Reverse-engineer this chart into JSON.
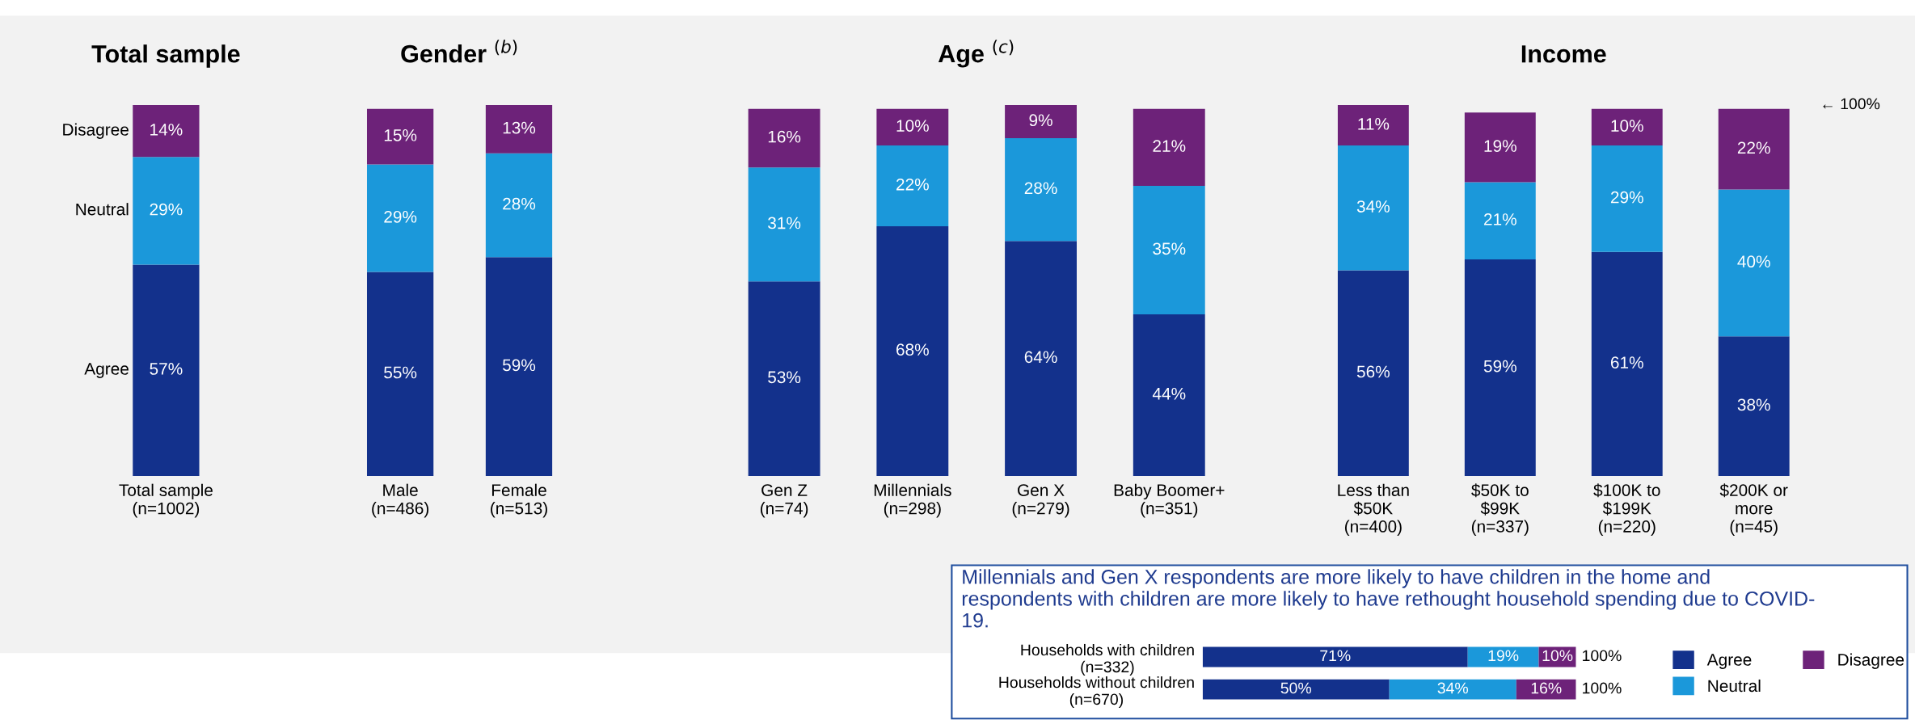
{
  "chart_data": [
    {
      "type": "bar",
      "stacked": true,
      "title": "Total sample",
      "categories": [
        "Total sample\n(n=1002)"
      ],
      "series": [
        {
          "name": "Agree",
          "color": "#13318c",
          "values": [
            57
          ],
          "value_labels": [
            "57%"
          ]
        },
        {
          "name": "Neutral",
          "color": "#1b98da",
          "values": [
            29
          ],
          "value_labels": [
            "29%"
          ]
        },
        {
          "name": "Disagree",
          "color": "#6d2279",
          "values": [
            14
          ],
          "value_labels": [
            "14%"
          ]
        }
      ],
      "legend": false
    },
    {
      "type": "bar",
      "stacked": true,
      "title": "Gender $^{(b)}$",
      "categories": [
        "Male\n(n=486)",
        "Female\n(n=513)"
      ],
      "series": [
        {
          "color": "#13318c",
          "values": [
            55,
            59
          ],
          "value_labels": [
            "55%",
            "59%"
          ]
        },
        {
          "color": "#1b98da",
          "values": [
            29,
            28
          ],
          "value_labels": [
            "29%",
            "28%"
          ]
        },
        {
          "color": "#6d2279",
          "values": [
            15,
            13
          ],
          "value_labels": [
            "15%",
            "13%"
          ]
        }
      ],
      "legend": false
    },
    {
      "type": "bar",
      "stacked": true,
      "title": "Age $^{(c)}$",
      "categories": [
        "Gen Z\n(n=74)",
        "Millennials\n(n=298)",
        "Gen X\n(n=279)",
        "Baby Boomer+\n(n=351)"
      ],
      "series": [
        {
          "color": "#13318c",
          "values": [
            53,
            68,
            64,
            44
          ],
          "value_labels": [
            "53%",
            "68%",
            "64%",
            "44%"
          ]
        },
        {
          "color": "#1b98da",
          "values": [
            31,
            22,
            28,
            35
          ],
          "value_labels": [
            "31%",
            "22%",
            "28%",
            "35%"
          ]
        },
        {
          "color": "#6d2279",
          "values": [
            16,
            10,
            9,
            21
          ],
          "value_labels": [
            "16%",
            "10%",
            "9%",
            "21%"
          ]
        }
      ],
      "legend": false
    },
    {
      "type": "bar",
      "stacked": true,
      "title": "Income",
      "categories": [
        "Less than\n$50K\n(n=400)",
        "$50K to\n$99K\n(n=337)",
        "$100K to\n$199K\n(n=220)",
        "$200K or\nmore\n(n=45)"
      ],
      "series": [
        {
          "color": "#13318c",
          "values": [
            56,
            59,
            61,
            38
          ],
          "value_labels": [
            "56%",
            "59%",
            "61%",
            "38%"
          ]
        },
        {
          "color": "#1b98da",
          "values": [
            34,
            21,
            29,
            40
          ],
          "value_labels": [
            "34%",
            "21%",
            "29%",
            "40%"
          ]
        },
        {
          "color": "#6d2279",
          "values": [
            11,
            19,
            10,
            22
          ],
          "value_labels": [
            "11%",
            "19%",
            "10%",
            "22%"
          ]
        }
      ],
      "annotations": [
        "← 100%"
      ],
      "legend": false
    },
    {
      "type": "bar",
      "stacked": true,
      "orientation": "horizontal",
      "title": "Millennials and Gen X respondents are more likely to have children in the home and\nrespondents with children are more likely to have rethought household spending due to COVID-\n19.",
      "categories": [
        "Households with children\n(n=332)",
        "Households without children\n(n=670)"
      ],
      "series": [
        {
          "name": "Agree",
          "color": "#13318c",
          "values": [
            71,
            50
          ],
          "value_labels": [
            "71%",
            "50%"
          ]
        },
        {
          "name": "Neutral",
          "color": "#1b98da",
          "values": [
            19,
            34
          ],
          "value_labels": [
            "19%",
            "34%"
          ]
        },
        {
          "name": "Disagree",
          "color": "#6d2279",
          "values": [
            10,
            16
          ],
          "value_labels": [
            "10%",
            "16%"
          ]
        }
      ],
      "totals": [
        "100%",
        "100%"
      ],
      "legend": "right"
    }
  ]
}
